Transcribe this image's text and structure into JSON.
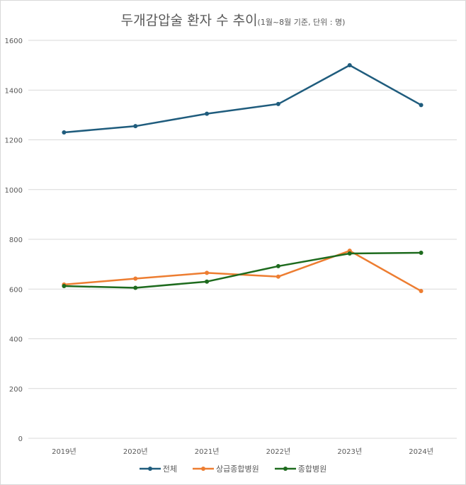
{
  "chart_data": {
    "type": "line",
    "title": "두개감압술 환자 수 추이",
    "subtitle": "(1월~8월 기준, 단위 : 명)",
    "categories": [
      "2019년",
      "2020년",
      "2021년",
      "2022년",
      "2023년",
      "2024년"
    ],
    "ylim": [
      0,
      1600
    ],
    "yticks": [
      0,
      200,
      400,
      600,
      800,
      1000,
      1200,
      1400,
      1600
    ],
    "grid": true,
    "legend_placement": "bottom",
    "series": [
      {
        "name": "전체",
        "color": "#1f5c7d",
        "values": [
          1230,
          1255,
          1305,
          1344,
          1500,
          1340
        ]
      },
      {
        "name": "상급종합병원",
        "color": "#ed7d31",
        "values": [
          618,
          642,
          665,
          650,
          754,
          592
        ]
      },
      {
        "name": "종합병원",
        "color": "#1e6b1e",
        "values": [
          612,
          605,
          630,
          692,
          743,
          746
        ]
      }
    ]
  }
}
